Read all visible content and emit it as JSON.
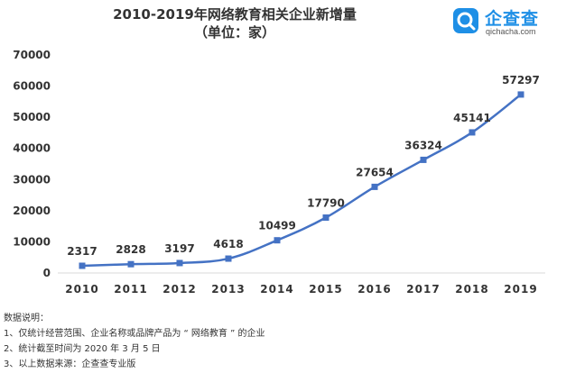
{
  "title": {
    "line1": "2010-2019年网络教育相关企业新增量",
    "line2": "（单位：家）"
  },
  "brand": {
    "name": "企查查",
    "domain": "qichacha.com",
    "icon": "qichacha-logo-icon",
    "color": "#1e8fe6"
  },
  "notes": {
    "heading": "数据说明：",
    "items": [
      "1、仅统计经营范围、企业名称或品牌产品为 “ 网络教育 ” 的企业",
      "2、统计截至时间为 2020 年 3 月 5 日",
      "3、以上数据来源：企查查专业版"
    ]
  },
  "chart_data": {
    "type": "line",
    "categories": [
      "2010",
      "2011",
      "2012",
      "2013",
      "2014",
      "2015",
      "2016",
      "2017",
      "2018",
      "2019"
    ],
    "values": [
      2317,
      2828,
      3197,
      4618,
      10499,
      17790,
      27654,
      36324,
      45141,
      57297
    ],
    "data_labels": [
      "2317",
      "2828",
      "3197",
      "4618",
      "10499",
      "17790",
      "27654",
      "36324",
      "45141",
      "57297"
    ],
    "yticks": [
      "0",
      "10000",
      "20000",
      "30000",
      "40000",
      "50000",
      "60000",
      "70000"
    ],
    "ylim": [
      0,
      70000
    ],
    "grid": false,
    "line_color": "#4472c4",
    "marker": "square"
  }
}
